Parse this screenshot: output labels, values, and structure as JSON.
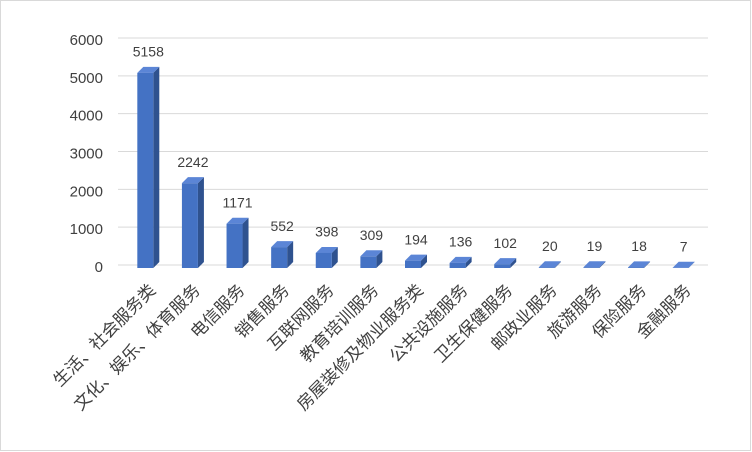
{
  "chart_data": {
    "type": "bar",
    "categories": [
      "生活、社会服务类",
      "文化、娱乐、体育服务",
      "电信服务",
      "销售服务",
      "互联网服务",
      "教育培训服务",
      "房屋装修及物业服务类",
      "公共设施服务",
      "卫生保健服务",
      "邮政业服务",
      "旅游服务",
      "保险服务",
      "金融服务"
    ],
    "values": [
      5158,
      2242,
      1171,
      552,
      398,
      309,
      194,
      136,
      102,
      20,
      19,
      18,
      7
    ],
    "color": "#4472c4",
    "ylim": [
      0,
      6000
    ],
    "yticks": [
      0,
      1000,
      2000,
      3000,
      4000,
      5000,
      6000
    ],
    "grid": true
  }
}
